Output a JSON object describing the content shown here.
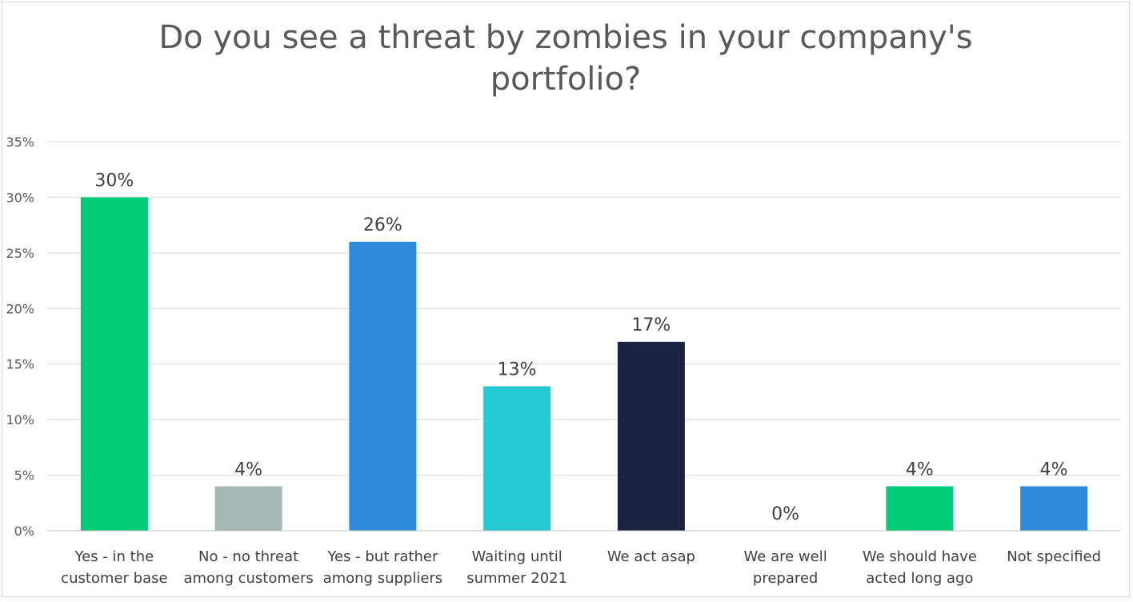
{
  "chart_data": {
    "type": "bar",
    "title_lines": [
      "Do you see a threat by zombies in your company's",
      "portfolio?"
    ],
    "categories": [
      [
        "Yes - in the",
        "customer base"
      ],
      [
        "No - no threat",
        "among customers"
      ],
      [
        "Yes - but rather",
        "among suppliers"
      ],
      [
        "Waiting until",
        "summer 2021"
      ],
      [
        "We act asap"
      ],
      [
        "We are well",
        "prepared"
      ],
      [
        "We should have",
        "acted long ago"
      ],
      [
        "Not specified"
      ]
    ],
    "values": [
      30,
      4,
      26,
      13,
      17,
      0,
      4,
      4
    ],
    "data_labels": [
      "30%",
      "4%",
      "26%",
      "13%",
      "17%",
      "0%",
      "4%",
      "4%"
    ],
    "bar_colors": [
      "#00CC77",
      "#A5B8B5",
      "#2E8BDB",
      "#24CBD4",
      "#1A2340",
      "#2E8BDB",
      "#00CC77",
      "#2E8BDB"
    ],
    "ylim": [
      0,
      35
    ],
    "yticks": [
      0,
      5,
      10,
      15,
      20,
      25,
      30,
      35
    ],
    "ytick_labels": [
      "0%",
      "5%",
      "10%",
      "15%",
      "20%",
      "25%",
      "30%",
      "35%"
    ],
    "grid": true,
    "legend": "none"
  }
}
